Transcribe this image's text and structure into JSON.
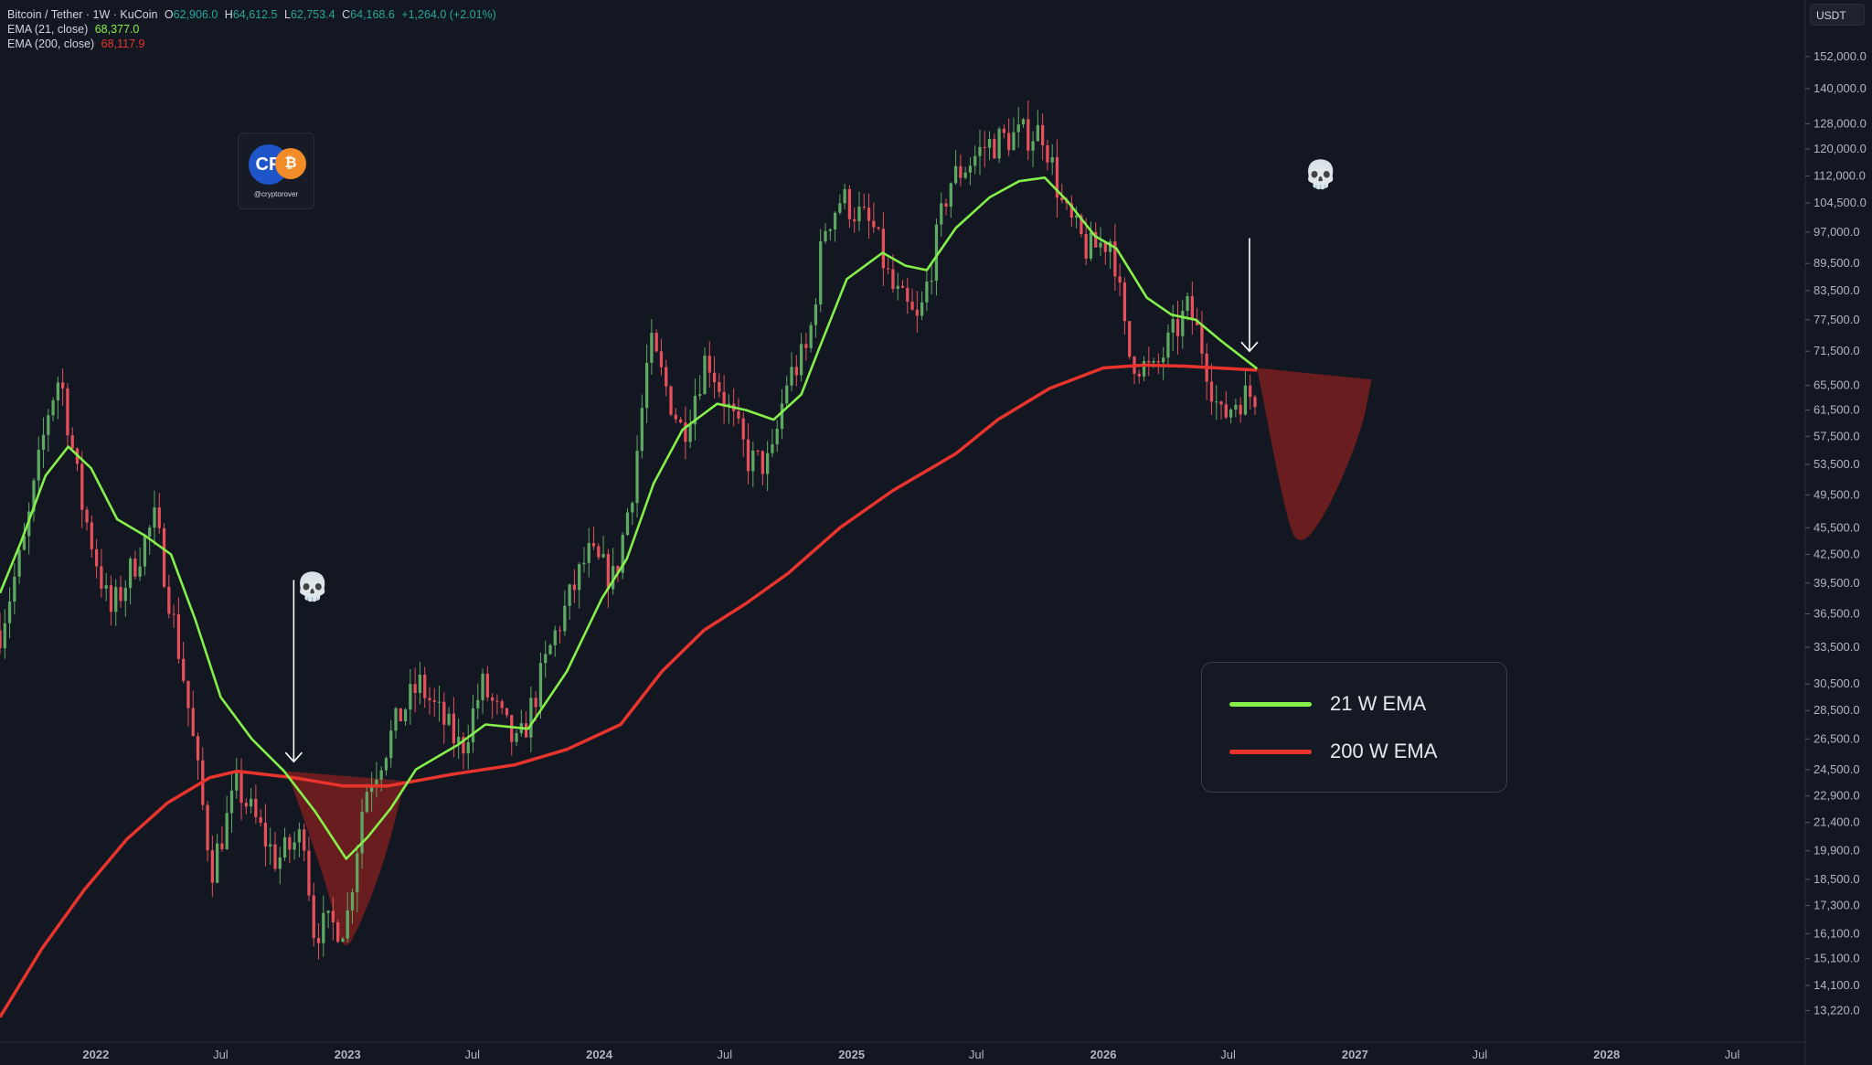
{
  "header": {
    "symbol": "Bitcoin / Tether · 1W · KuCoin",
    "open_label": "O",
    "open": "62,906.0",
    "high_label": "H",
    "high": "64,612.5",
    "low_label": "L",
    "low": "62,753.4",
    "close_label": "C",
    "close": "64,168.6",
    "change": "+1,264.0 (+2.01%)",
    "ema21_label": "EMA (21, close)",
    "ema21_value": "68,377.0",
    "ema200_label": "EMA (200, close)",
    "ema200_value": "68,117.9"
  },
  "currency_tag": "USDT",
  "watermark_handle": "@cryptorover",
  "watermark_mark_text": "CR",
  "legend": {
    "ema21": "21 W EMA",
    "ema200": "200 W EMA"
  },
  "skull_glyph": "💀",
  "colors": {
    "background": "#131722",
    "up": "#5fa864",
    "down": "#e5505a",
    "ema21": "#86f04a",
    "ema200": "#e8342c",
    "zone": "#7a1f1f"
  },
  "chart_data": {
    "type": "candlestick",
    "y_scale": "log",
    "ylim": [
      12600,
      160000
    ],
    "y_ticks": [
      152000,
      140000,
      128000,
      120000,
      112000,
      104500,
      97000,
      89500,
      83500,
      77500,
      71500,
      65500,
      61500,
      57500,
      53500,
      49500,
      45500,
      42500,
      39500,
      36500,
      33500,
      30500,
      28500,
      26500,
      24500,
      22900,
      21400,
      19900,
      18500,
      17300,
      16100,
      15100,
      14100,
      13220
    ],
    "y_tick_labels": [
      "152,000.0",
      "140,000.0",
      "128,000.0",
      "120,000.0",
      "112,000.0",
      "104,500.0",
      "97,000.0",
      "89,500.0",
      "83,500.0",
      "77,500.0",
      "71,500.0",
      "65,500.0",
      "61,500.0",
      "57,500.0",
      "53,500.0",
      "49,500.0",
      "45,500.0",
      "42,500.0",
      "39,500.0",
      "36,500.0",
      "33,500.0",
      "30,500.0",
      "28,500.0",
      "26,500.0",
      "24,500.0",
      "22,900.0",
      "21,400.0",
      "19,900.0",
      "18,500.0",
      "17,300.0",
      "16,100.0",
      "15,100.0",
      "14,100.0",
      "13,220.0"
    ],
    "xlim": [
      "2021-08-15",
      "2028-10-15"
    ],
    "x_ticks": [
      {
        "date": "2022-01-01",
        "label": "2022",
        "major": true
      },
      {
        "date": "2022-07-01",
        "label": "Jul",
        "major": false
      },
      {
        "date": "2023-01-01",
        "label": "2023",
        "major": true
      },
      {
        "date": "2023-07-01",
        "label": "Jul",
        "major": false
      },
      {
        "date": "2024-01-01",
        "label": "2024",
        "major": true
      },
      {
        "date": "2024-07-01",
        "label": "Jul",
        "major": false
      },
      {
        "date": "2025-01-01",
        "label": "2025",
        "major": true
      },
      {
        "date": "2025-07-01",
        "label": "Jul",
        "major": false
      },
      {
        "date": "2026-01-01",
        "label": "2026",
        "major": true
      },
      {
        "date": "2026-07-01",
        "label": "Jul",
        "major": false
      },
      {
        "date": "2027-01-01",
        "label": "2027",
        "major": true
      },
      {
        "date": "2027-07-01",
        "label": "Jul",
        "major": false
      },
      {
        "date": "2028-01-01",
        "label": "2028",
        "major": true
      },
      {
        "date": "2028-07-01",
        "label": "Jul",
        "major": false
      }
    ],
    "close_path": [
      [
        "2021-08-15",
        35000
      ],
      [
        "2021-09-20",
        44000
      ],
      [
        "2021-10-25",
        62000
      ],
      [
        "2021-11-10",
        67500
      ],
      [
        "2021-12-10",
        49000
      ],
      [
        "2022-01-22",
        36500
      ],
      [
        "2022-03-28",
        46500
      ],
      [
        "2022-05-10",
        30500
      ],
      [
        "2022-06-18",
        19000
      ],
      [
        "2022-07-25",
        23500
      ],
      [
        "2022-09-20",
        19400
      ],
      [
        "2022-10-30",
        20800
      ],
      [
        "2022-11-12",
        16300
      ],
      [
        "2022-12-30",
        16500
      ],
      [
        "2023-01-25",
        23000
      ],
      [
        "2023-03-20",
        28300
      ],
      [
        "2023-04-15",
        30500
      ],
      [
        "2023-06-15",
        25800
      ],
      [
        "2023-07-15",
        30400
      ],
      [
        "2023-09-05",
        25800
      ],
      [
        "2023-10-28",
        34500
      ],
      [
        "2023-12-15",
        42500
      ],
      [
        "2024-01-23",
        39800
      ],
      [
        "2024-02-20",
        51500
      ],
      [
        "2024-03-14",
        73000
      ],
      [
        "2024-05-01",
        58000
      ],
      [
        "2024-06-05",
        71000
      ],
      [
        "2024-08-05",
        54000
      ],
      [
        "2024-09-06",
        53500
      ],
      [
        "2024-09-28",
        66000
      ],
      [
        "2024-10-30",
        72000
      ],
      [
        "2024-11-22",
        98000
      ],
      [
        "2024-12-17",
        106000
      ],
      [
        "2025-02-02",
        97500
      ],
      [
        "2025-02-28",
        84000
      ],
      [
        "2025-04-08",
        76500
      ],
      [
        "2025-05-22",
        110000
      ],
      [
        "2025-07-14",
        121000
      ],
      [
        "2025-08-14",
        123500
      ],
      [
        "2025-10-06",
        125500
      ],
      [
        "2025-11-05",
        102000
      ],
      [
        "2025-12-10",
        92500
      ],
      [
        "2026-01-14",
        95500
      ],
      [
        "2026-02-05",
        71000
      ],
      [
        "2026-03-15",
        67500
      ],
      [
        "2026-04-10",
        74000
      ],
      [
        "2026-05-05",
        80000
      ],
      [
        "2026-05-25",
        72000
      ],
      [
        "2026-06-20",
        60000
      ],
      [
        "2026-07-15",
        63500
      ],
      [
        "2026-08-12",
        64168.6
      ]
    ],
    "ema21": [
      [
        "2021-08-15",
        38500
      ],
      [
        "2021-09-15",
        44000
      ],
      [
        "2021-10-20",
        52000
      ],
      [
        "2021-11-22",
        56000
      ],
      [
        "2021-12-25",
        53000
      ],
      [
        "2022-02-01",
        46500
      ],
      [
        "2022-03-15",
        44500
      ],
      [
        "2022-04-20",
        42500
      ],
      [
        "2022-05-25",
        36000
      ],
      [
        "2022-07-01",
        29500
      ],
      [
        "2022-08-15",
        26500
      ],
      [
        "2022-10-01",
        24400
      ],
      [
        "2022-11-15",
        22000
      ],
      [
        "2022-12-30",
        19500
      ],
      [
        "2023-01-30",
        20600
      ],
      [
        "2023-03-05",
        22200
      ],
      [
        "2023-04-10",
        24500
      ],
      [
        "2023-06-10",
        26100
      ],
      [
        "2023-07-20",
        27500
      ],
      [
        "2023-09-20",
        27200
      ],
      [
        "2023-11-15",
        31500
      ],
      [
        "2024-01-05",
        38000
      ],
      [
        "2024-02-10",
        42000
      ],
      [
        "2024-03-20",
        51000
      ],
      [
        "2024-05-01",
        58500
      ],
      [
        "2024-06-20",
        62500
      ],
      [
        "2024-08-01",
        61500
      ],
      [
        "2024-09-10",
        60000
      ],
      [
        "2024-10-20",
        64000
      ],
      [
        "2024-11-15",
        72000
      ],
      [
        "2024-12-25",
        86000
      ],
      [
        "2025-02-15",
        92000
      ],
      [
        "2025-03-20",
        89000
      ],
      [
        "2025-04-20",
        88000
      ],
      [
        "2025-06-01",
        98000
      ],
      [
        "2025-07-20",
        106000
      ],
      [
        "2025-09-01",
        110500
      ],
      [
        "2025-10-08",
        111500
      ],
      [
        "2025-11-10",
        105000
      ],
      [
        "2025-12-20",
        96000
      ],
      [
        "2026-01-20",
        93000
      ],
      [
        "2026-03-05",
        82000
      ],
      [
        "2026-04-10",
        78500
      ],
      [
        "2026-05-15",
        77500
      ],
      [
        "2026-06-20",
        73500
      ],
      [
        "2026-08-12",
        68377
      ]
    ],
    "ema200": [
      [
        "2021-08-15",
        13000
      ],
      [
        "2021-10-15",
        15500
      ],
      [
        "2021-12-15",
        18000
      ],
      [
        "2022-02-15",
        20500
      ],
      [
        "2022-04-15",
        22500
      ],
      [
        "2022-06-15",
        24000
      ],
      [
        "2022-07-25",
        24400
      ],
      [
        "2022-10-15",
        24000
      ],
      [
        "2022-12-25",
        23500
      ],
      [
        "2023-03-01",
        23500
      ],
      [
        "2023-06-01",
        24200
      ],
      [
        "2023-09-01",
        24800
      ],
      [
        "2023-11-15",
        25800
      ],
      [
        "2024-02-01",
        27500
      ],
      [
        "2024-04-01",
        31500
      ],
      [
        "2024-06-01",
        35000
      ],
      [
        "2024-08-01",
        37500
      ],
      [
        "2024-10-01",
        40500
      ],
      [
        "2024-12-15",
        45500
      ],
      [
        "2025-03-01",
        50000
      ],
      [
        "2025-06-01",
        55000
      ],
      [
        "2025-08-01",
        60000
      ],
      [
        "2025-10-15",
        65000
      ],
      [
        "2026-01-01",
        68500
      ],
      [
        "2026-03-01",
        69000
      ],
      [
        "2026-05-01",
        68800
      ],
      [
        "2026-08-12",
        68117.9
      ]
    ],
    "annotations": [
      {
        "type": "down-arrow",
        "date": "2022-10-15",
        "from": 39800,
        "to": 25000
      },
      {
        "type": "down-arrow",
        "date": "2026-08-01",
        "from": 95500,
        "to": 71500
      },
      {
        "type": "zone",
        "points": [
          [
            "2022-10-05",
            24400
          ],
          [
            "2022-12-05",
            18000
          ],
          [
            "2022-12-25",
            15200
          ],
          [
            "2023-01-20",
            16500
          ],
          [
            "2023-02-25",
            19500
          ],
          [
            "2023-03-25",
            23800
          ]
        ]
      },
      {
        "type": "zone",
        "points": [
          [
            "2026-08-12",
            68500
          ],
          [
            "2026-09-20",
            48000
          ],
          [
            "2026-10-10",
            43000
          ],
          [
            "2026-11-20",
            47000
          ],
          [
            "2027-01-10",
            58000
          ],
          [
            "2027-01-25",
            66500
          ]
        ]
      }
    ]
  }
}
